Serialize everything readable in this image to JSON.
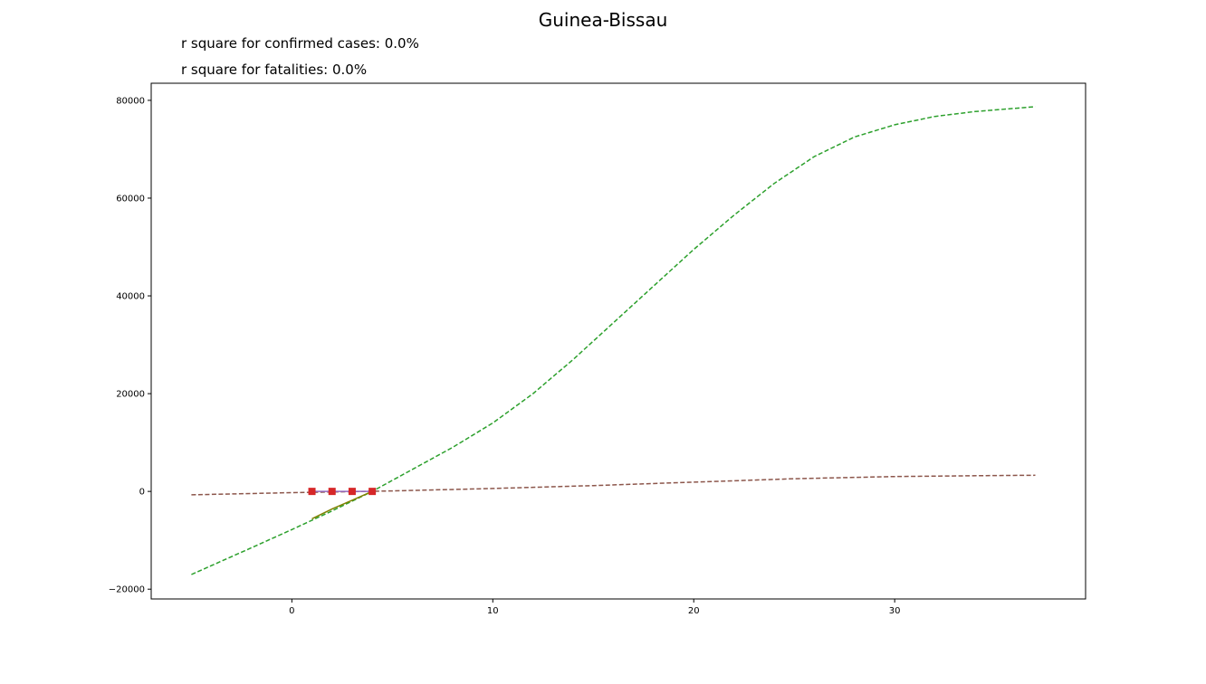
{
  "title": "Guinea-Bissau",
  "annotations": {
    "confirmed": "r square for confirmed cases: 0.0%",
    "fatalities": "r square for fatalities: 0.0%"
  },
  "chart_data": {
    "type": "line",
    "title": "Guinea-Bissau",
    "xlabel": "",
    "ylabel": "",
    "xlim": [
      -7,
      39.5
    ],
    "ylim": [
      -22000,
      83500
    ],
    "grid": false,
    "xticks": [
      0,
      10,
      20,
      30
    ],
    "yticks": [
      -20000,
      0,
      20000,
      40000,
      60000,
      80000
    ],
    "xtick_labels": [
      "0",
      "10",
      "20",
      "30"
    ],
    "ytick_labels": [
      "−20000",
      "0",
      "20000",
      "40000",
      "60000",
      "80000"
    ],
    "series": [
      {
        "style": "dashed",
        "color": "#2ca02c",
        "x": [
          -5,
          -2,
          0,
          2,
          4,
          6,
          8,
          10,
          12,
          14,
          16,
          18,
          20,
          22,
          24,
          26,
          28,
          30,
          32,
          34,
          37
        ],
        "y": [
          -17000,
          -11500,
          -7800,
          -4000,
          0,
          4500,
          9000,
          14000,
          20000,
          27000,
          34500,
          42000,
          49500,
          56500,
          63000,
          68500,
          72500,
          75000,
          76700,
          77700,
          78700
        ]
      },
      {
        "style": "dashed",
        "color": "#8c564b",
        "x": [
          -5,
          0,
          5,
          10,
          15,
          20,
          25,
          30,
          35,
          37
        ],
        "y": [
          -700,
          -250,
          100,
          600,
          1200,
          1900,
          2600,
          3050,
          3250,
          3300
        ]
      },
      {
        "style": "solid",
        "color": "#808000",
        "x": [
          1,
          2,
          3,
          4
        ],
        "y": [
          -5600,
          -3600,
          -1800,
          0
        ]
      },
      {
        "style": "solid",
        "color": "#9467bd",
        "x": [
          1,
          2,
          3,
          4
        ],
        "y": [
          0,
          0,
          0,
          0
        ]
      },
      {
        "style": "markers",
        "marker": "square",
        "color": "#d62728",
        "x": [
          1,
          2,
          3,
          4
        ],
        "y": [
          0,
          0,
          0,
          0
        ]
      }
    ]
  }
}
